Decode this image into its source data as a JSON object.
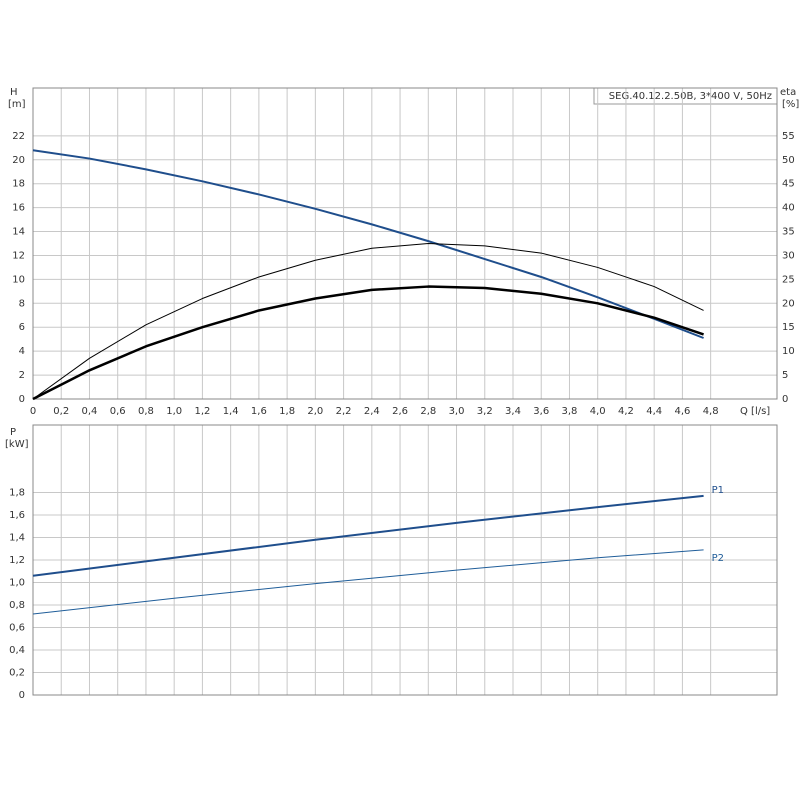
{
  "chart_data": [
    {
      "type": "line",
      "title": "SEG.40.12.2.50B, 3*400 V, 50Hz",
      "y_label": "H",
      "y_unit": "[m]",
      "y2_label": "eta",
      "y2_unit": "[%]",
      "x_label": "Q [l/s]",
      "x": [
        0,
        0.4,
        0.8,
        1.2,
        1.6,
        2.0,
        2.4,
        2.8,
        3.2,
        3.6,
        4.0,
        4.4,
        4.75
      ],
      "series": [
        {
          "color": "#1f4e8c",
          "line_width": 2,
          "values": [
            20.8,
            20.1,
            19.2,
            18.2,
            17.1,
            15.9,
            14.6,
            13.2,
            11.7,
            10.2,
            8.5,
            6.7,
            5.1
          ]
        },
        {
          "color": "#000000",
          "line_width": 1,
          "axis": "y2",
          "values": [
            0,
            8.5,
            15.5,
            21,
            25.5,
            29,
            31.5,
            32.5,
            32,
            30.5,
            27.5,
            23.5,
            18.5
          ]
        },
        {
          "color": "#000000",
          "line_width": 2.5,
          "axis": "y2",
          "values": [
            0,
            6,
            11,
            15,
            18.5,
            21,
            22.8,
            23.5,
            23.2,
            22,
            20,
            17,
            13.5
          ]
        }
      ],
      "xlim": [
        0,
        5.27
      ],
      "xticks": [
        0,
        {
          "value": 0.2,
          "label": "0,2"
        },
        {
          "value": 0.4,
          "label": "0,4"
        },
        {
          "value": 0.6,
          "label": "0,6"
        },
        {
          "value": 0.8,
          "label": "0,8"
        },
        {
          "value": 1.0,
          "label": "1,0"
        },
        {
          "value": 1.2,
          "label": "1,2"
        },
        {
          "value": 1.4,
          "label": "1,4"
        },
        {
          "value": 1.6,
          "label": "1,6"
        },
        {
          "value": 1.8,
          "label": "1,8"
        },
        {
          "value": 2.0,
          "label": "2,0"
        },
        {
          "value": 2.2,
          "label": "2,2"
        },
        {
          "value": 2.4,
          "label": "2,4"
        },
        {
          "value": 2.6,
          "label": "2,6"
        },
        {
          "value": 2.8,
          "label": "2,8"
        },
        {
          "value": 3.0,
          "label": "3,0"
        },
        {
          "value": 3.2,
          "label": "3,2"
        },
        {
          "value": 3.4,
          "label": "3,4"
        },
        {
          "value": 3.6,
          "label": "3,6"
        },
        {
          "value": 3.8,
          "label": "3,8"
        },
        {
          "value": 4.0,
          "label": "4,0"
        },
        {
          "value": 4.2,
          "label": "4,2"
        },
        {
          "value": 4.4,
          "label": "4,4"
        },
        {
          "value": 4.6,
          "label": "4,6"
        },
        {
          "value": 4.8,
          "label": "4,8"
        }
      ],
      "ylim": [
        0,
        26
      ],
      "yticks": [
        0,
        2,
        4,
        6,
        8,
        10,
        12,
        14,
        16,
        18,
        20,
        22
      ],
      "y2lim": [
        0,
        65
      ],
      "y2ticks": [
        0,
        5,
        10,
        15,
        20,
        25,
        30,
        35,
        40,
        45,
        50,
        55
      ],
      "grid": true
    },
    {
      "type": "line",
      "y_label": "P",
      "y_unit": "[kW]",
      "x": [
        0,
        1,
        2,
        3,
        4,
        4.75
      ],
      "series": [
        {
          "name": "P1",
          "color": "#1f4e8c",
          "line_width": 2,
          "values": [
            1.06,
            1.22,
            1.38,
            1.53,
            1.67,
            1.77
          ]
        },
        {
          "name": "P2",
          "color": "#1f5d99",
          "line_width": 1,
          "values": [
            0.72,
            0.86,
            0.99,
            1.11,
            1.22,
            1.29
          ]
        }
      ],
      "xlim": [
        0,
        5.27
      ],
      "xticks": [
        0,
        0.2,
        0.4,
        0.6,
        0.8,
        1.0,
        1.2,
        1.4,
        1.6,
        1.8,
        2.0,
        2.2,
        2.4,
        2.6,
        2.8,
        3.0,
        3.2,
        3.4,
        3.6,
        3.8,
        4.0,
        4.2,
        4.4,
        4.6,
        4.8
      ],
      "ylim": [
        0,
        2.4
      ],
      "yticks": [
        0,
        {
          "value": 0.2,
          "label": "0,2"
        },
        {
          "value": 0.4,
          "label": "0,4"
        },
        {
          "value": 0.6,
          "label": "0,6"
        },
        {
          "value": 0.8,
          "label": "0,8"
        },
        {
          "value": 1.0,
          "label": "1,0"
        },
        {
          "value": 1.2,
          "label": "1,2"
        },
        {
          "value": 1.4,
          "label": "1,4"
        },
        {
          "value": 1.6,
          "label": "1,6"
        },
        {
          "value": 1.8,
          "label": "1,8"
        }
      ],
      "grid": true
    }
  ]
}
